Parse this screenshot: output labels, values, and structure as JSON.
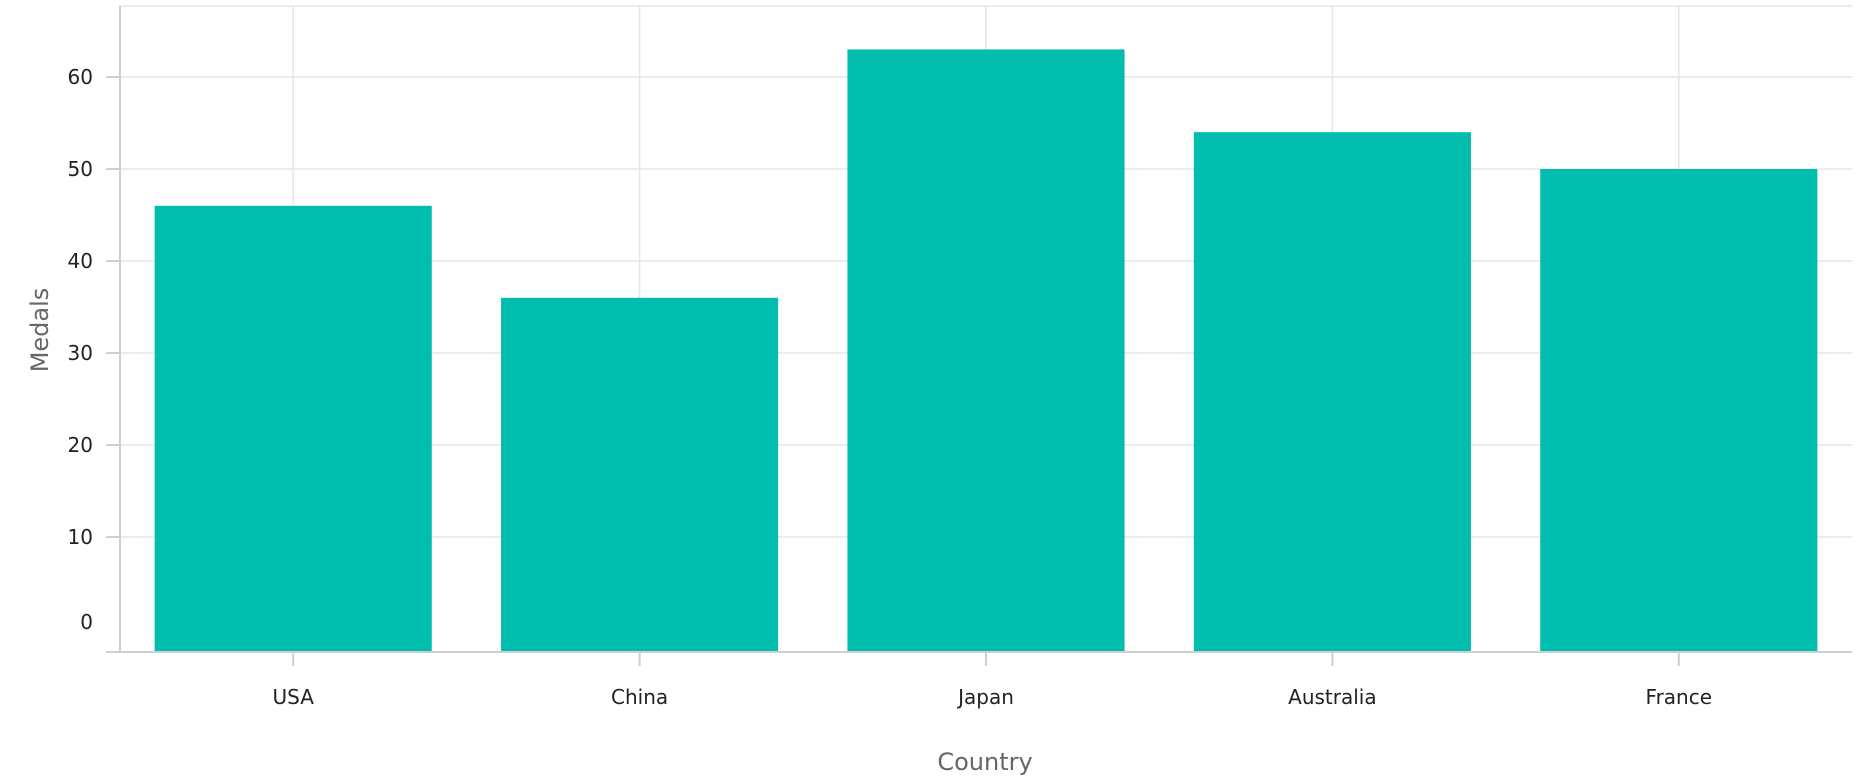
{
  "chart_data": {
    "type": "bar",
    "xlabel": "Country",
    "ylabel": "Medals",
    "categories": [
      "USA",
      "China",
      "Japan",
      "Australia",
      "France"
    ],
    "values": [
      46,
      36,
      63,
      54,
      50
    ],
    "ylim": [
      0,
      70
    ],
    "yticks": [
      0,
      10,
      20,
      30,
      40,
      50,
      60,
      70
    ],
    "grid": true,
    "bar_color": "#00bdae",
    "legend": "none"
  }
}
